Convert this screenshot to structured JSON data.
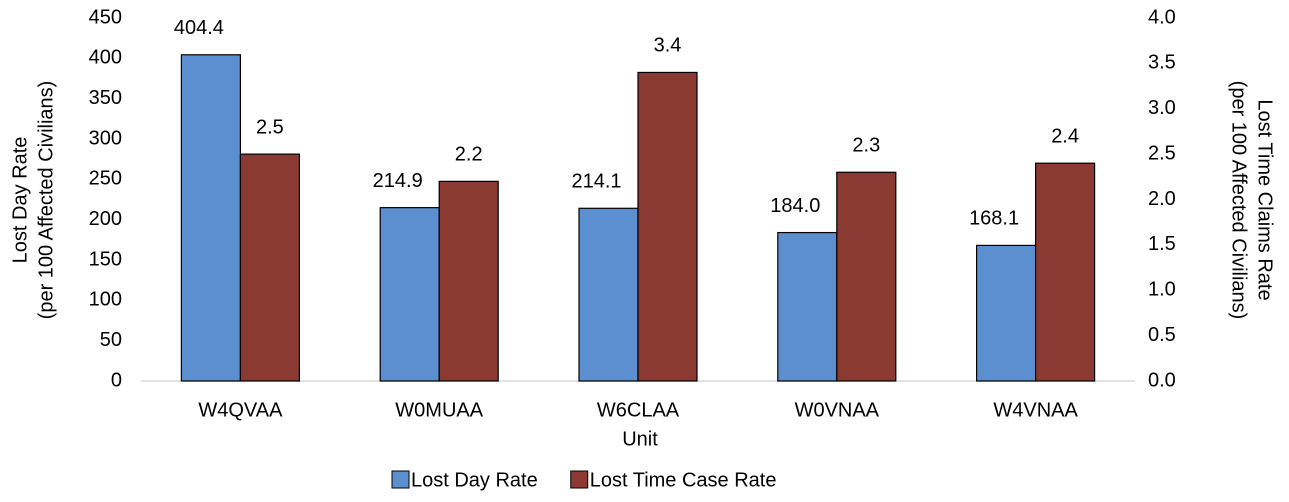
{
  "chart_data": {
    "type": "bar",
    "categories": [
      "W4QVAA",
      "W0MUAA",
      "W6CLAA",
      "W0VNAA",
      "W4VNAA"
    ],
    "series": [
      {
        "name": "Lost Day Rate",
        "color": "#5b8fcf",
        "values": [
          404.4,
          214.9,
          214.1,
          184.0,
          168.1
        ],
        "value_labels": [
          "404.4",
          "214.9",
          "214.1",
          "184.0",
          "168.1"
        ]
      },
      {
        "name": "Lost Time Case Rate",
        "color": "#8b3a32",
        "axis": "y2",
        "values": [
          2.5,
          2.2,
          3.4,
          2.3,
          2.4
        ]
      }
    ],
    "xlabel": "Unit",
    "ylabel": [
      "Lost Day Rate",
      "(per 100 Affected Civilians)"
    ],
    "y2label": [
      "Lost Time Claims Rate",
      "(per 100 Affected Civilians)"
    ],
    "ylim": [
      0,
      450
    ],
    "yticks": [
      0,
      50,
      100,
      150,
      200,
      250,
      300,
      350,
      400,
      450
    ],
    "y2lim": [
      0,
      4
    ],
    "y2ticks": [
      {
        "value": 0,
        "label": "0.0"
      },
      {
        "value": 0.5,
        "label": "0.5"
      },
      {
        "value": 1,
        "label": "1.0"
      },
      {
        "value": 1.5,
        "label": "1.5"
      },
      {
        "value": 2,
        "label": "2.0"
      },
      {
        "value": 2.5,
        "label": "2.5"
      },
      {
        "value": 3,
        "label": "3.0"
      },
      {
        "value": 3.5,
        "label": "3.5"
      },
      {
        "value": 4,
        "label": "4.0"
      }
    ],
    "legend": "bottom",
    "grid": false
  }
}
